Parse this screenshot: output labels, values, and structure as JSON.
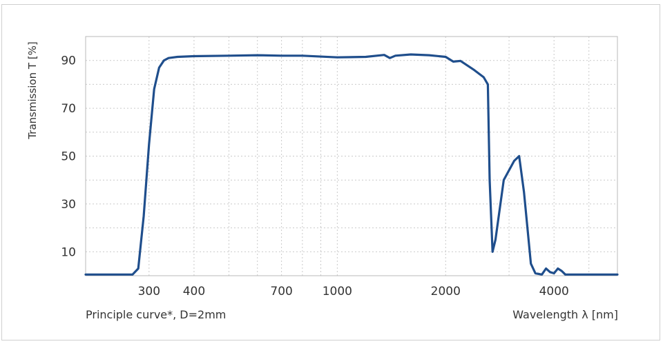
{
  "chart_data": {
    "type": "line",
    "x_scale": "log",
    "xlim": [
      200,
      6000
    ],
    "ylim": [
      0,
      100
    ],
    "ylabel": "Transmission T [%]",
    "xlabel": "Wavelength λ [nm]",
    "footnote": "Principle curve*, D=2mm",
    "x_ticks": [
      300,
      400,
      700,
      1000,
      2000,
      4000
    ],
    "y_ticks": [
      10,
      30,
      50,
      70,
      90
    ],
    "grid": true,
    "line_color": "#1f4e8c",
    "series": [
      {
        "x": [
          200,
          270,
          280,
          290,
          300,
          310,
          320,
          330,
          340,
          360,
          400,
          500,
          600,
          700,
          800,
          1000,
          1200,
          1350,
          1400,
          1450,
          1600,
          1800,
          2000,
          2100,
          2200,
          2400,
          2550,
          2620,
          2650,
          2700,
          2750,
          2900,
          3100,
          3200,
          3300,
          3450,
          3550,
          3700,
          3800,
          3900,
          4000,
          4100,
          4200,
          4300,
          4500,
          6000
        ],
        "y": [
          0.5,
          0.5,
          3,
          25,
          55,
          78,
          87,
          90,
          91,
          91.5,
          91.8,
          92,
          92.2,
          92,
          92,
          91.3,
          91.5,
          92.3,
          91,
          92,
          92.5,
          92.2,
          91.5,
          89.5,
          89.8,
          86,
          83,
          80,
          40,
          10,
          15,
          40,
          48,
          50,
          35,
          5,
          1,
          0.5,
          3,
          1.5,
          1,
          3,
          2,
          0.5,
          0.5,
          0.5
        ]
      }
    ]
  }
}
